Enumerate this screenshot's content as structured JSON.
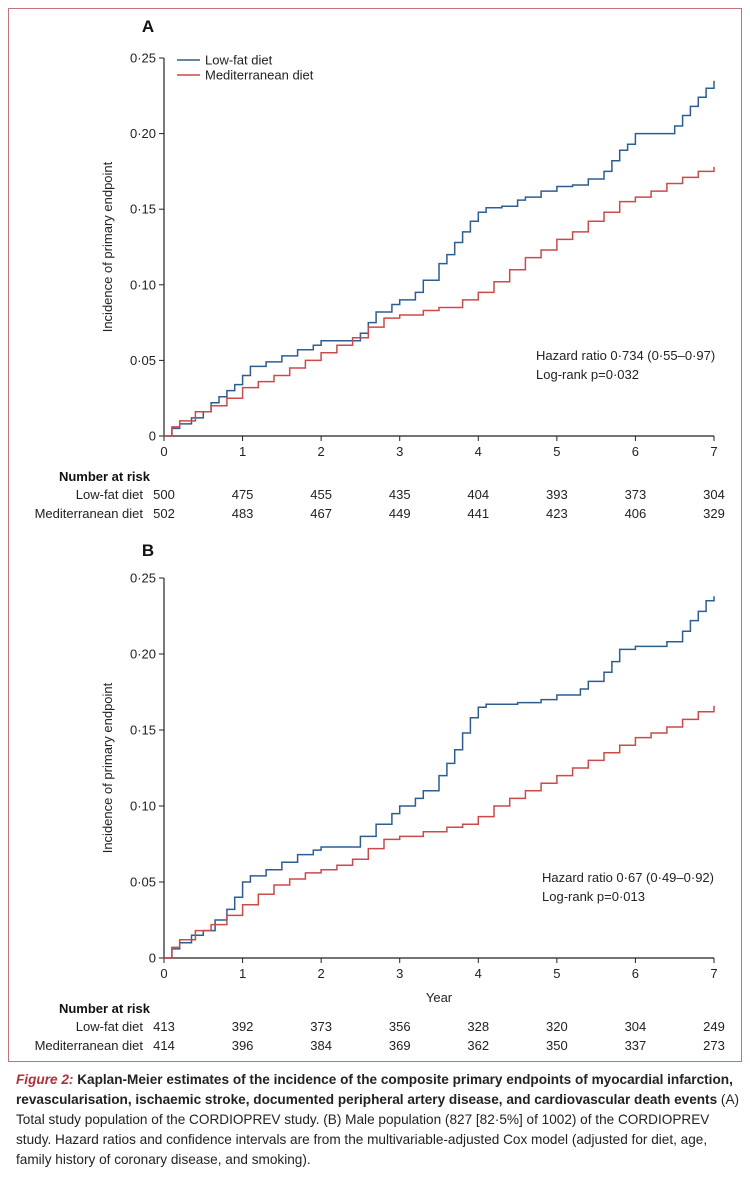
{
  "figure": {
    "caption_label": "Figure 2:",
    "caption_title": "Kaplan-Meier estimates of the incidence of the composite primary endpoints of myocardial infarction, revascularisation, ischaemic stroke, documented peripheral artery disease, and cardiovascular death events",
    "caption_body": "(A) Total study population of the CORDIOPREV study. (B) Male population (827 [82·5%] of 1002) of the CORDIOPREV study. Hazard ratios and confidence intervals are from the multivariable-adjusted Cox model (adjusted for diet, age, family history of coronary disease, and smoking)."
  },
  "colors": {
    "low_fat": "#2e5d8f",
    "mediterranean": "#cc4a4a",
    "frame": "#c7707a"
  },
  "chart_data": [
    {
      "type": "line",
      "panel": "A",
      "ylabel": "Incidence of primary endpoint",
      "xlabel": "",
      "xlim": [
        0,
        7
      ],
      "ylim": [
        0,
        0.25
      ],
      "x_ticks": [
        "0",
        "1",
        "2",
        "3",
        "4",
        "5",
        "6",
        "7"
      ],
      "y_ticks": [
        "0",
        "0·05",
        "0·10",
        "0·15",
        "0·20",
        "0·25"
      ],
      "legend": {
        "position": "top-left",
        "entries": [
          "Low-fat diet",
          "Mediterranean diet"
        ]
      },
      "annotation": [
        "Hazard ratio 0·734 (0·55–0·97)",
        "Log-rank p=0·032"
      ],
      "series": [
        {
          "name": "Low-fat diet",
          "x": [
            0,
            0.1,
            0.2,
            0.35,
            0.5,
            0.6,
            0.7,
            0.8,
            0.9,
            1.0,
            1.1,
            1.3,
            1.5,
            1.7,
            1.9,
            2.0,
            2.3,
            2.5,
            2.6,
            2.7,
            2.9,
            3.0,
            3.2,
            3.3,
            3.5,
            3.6,
            3.7,
            3.8,
            3.9,
            4.0,
            4.1,
            4.3,
            4.5,
            4.6,
            4.8,
            5.0,
            5.2,
            5.4,
            5.6,
            5.7,
            5.8,
            5.9,
            6.0,
            6.3,
            6.5,
            6.6,
            6.7,
            6.8,
            6.9,
            7.0
          ],
          "y": [
            0,
            0.005,
            0.008,
            0.012,
            0.016,
            0.022,
            0.026,
            0.03,
            0.034,
            0.04,
            0.046,
            0.049,
            0.053,
            0.057,
            0.06,
            0.063,
            0.063,
            0.068,
            0.075,
            0.082,
            0.087,
            0.09,
            0.095,
            0.103,
            0.114,
            0.12,
            0.128,
            0.135,
            0.142,
            0.148,
            0.151,
            0.152,
            0.156,
            0.158,
            0.162,
            0.165,
            0.166,
            0.17,
            0.175,
            0.182,
            0.189,
            0.193,
            0.2,
            0.2,
            0.205,
            0.212,
            0.218,
            0.224,
            0.23,
            0.235
          ]
        },
        {
          "name": "Mediterranean diet",
          "x": [
            0,
            0.1,
            0.2,
            0.4,
            0.6,
            0.8,
            1.0,
            1.2,
            1.4,
            1.6,
            1.8,
            2.0,
            2.2,
            2.4,
            2.6,
            2.8,
            3.0,
            3.3,
            3.5,
            3.8,
            4.0,
            4.2,
            4.4,
            4.6,
            4.8,
            5.0,
            5.2,
            5.4,
            5.6,
            5.8,
            6.0,
            6.2,
            6.4,
            6.6,
            6.8,
            7.0
          ],
          "y": [
            0,
            0.006,
            0.01,
            0.016,
            0.02,
            0.025,
            0.032,
            0.036,
            0.04,
            0.045,
            0.05,
            0.055,
            0.06,
            0.065,
            0.072,
            0.078,
            0.08,
            0.083,
            0.085,
            0.09,
            0.095,
            0.102,
            0.11,
            0.118,
            0.123,
            0.13,
            0.135,
            0.142,
            0.148,
            0.155,
            0.158,
            0.162,
            0.167,
            0.171,
            0.175,
            0.178
          ]
        }
      ],
      "risk_table": {
        "heading": "Number at risk",
        "rows": [
          {
            "label": "Low-fat diet",
            "values": [
              "500",
              "475",
              "455",
              "435",
              "404",
              "393",
              "373",
              "304"
            ]
          },
          {
            "label": "Mediterranean diet",
            "values": [
              "502",
              "483",
              "467",
              "449",
              "441",
              "423",
              "406",
              "329"
            ]
          }
        ]
      }
    },
    {
      "type": "line",
      "panel": "B",
      "ylabel": "Incidence of primary endpoint",
      "xlabel": "Year",
      "xlim": [
        0,
        7
      ],
      "ylim": [
        0,
        0.25
      ],
      "x_ticks": [
        "0",
        "1",
        "2",
        "3",
        "4",
        "5",
        "6",
        "7"
      ],
      "y_ticks": [
        "0",
        "0·05",
        "0·10",
        "0·15",
        "0·20",
        "0·25"
      ],
      "annotation": [
        "Hazard ratio 0·67 (0·49–0·92)",
        "Log-rank p=0·013"
      ],
      "series": [
        {
          "name": "Low-fat diet",
          "x": [
            0,
            0.1,
            0.2,
            0.35,
            0.5,
            0.65,
            0.8,
            0.9,
            1.0,
            1.1,
            1.3,
            1.5,
            1.7,
            1.9,
            2.0,
            2.3,
            2.5,
            2.7,
            2.9,
            3.0,
            3.2,
            3.3,
            3.5,
            3.6,
            3.7,
            3.8,
            3.9,
            4.0,
            4.1,
            4.3,
            4.5,
            4.8,
            5.0,
            5.3,
            5.4,
            5.6,
            5.7,
            5.8,
            6.0,
            6.4,
            6.6,
            6.7,
            6.8,
            6.9,
            7.0
          ],
          "y": [
            0,
            0.006,
            0.01,
            0.015,
            0.018,
            0.025,
            0.032,
            0.04,
            0.05,
            0.054,
            0.058,
            0.063,
            0.068,
            0.071,
            0.073,
            0.073,
            0.08,
            0.088,
            0.095,
            0.1,
            0.105,
            0.11,
            0.12,
            0.128,
            0.137,
            0.148,
            0.158,
            0.165,
            0.167,
            0.167,
            0.168,
            0.17,
            0.173,
            0.177,
            0.182,
            0.188,
            0.195,
            0.203,
            0.205,
            0.208,
            0.215,
            0.222,
            0.228,
            0.235,
            0.238
          ]
        },
        {
          "name": "Mediterranean diet",
          "x": [
            0,
            0.1,
            0.2,
            0.4,
            0.6,
            0.8,
            1.0,
            1.2,
            1.4,
            1.6,
            1.8,
            2.0,
            2.2,
            2.4,
            2.6,
            2.8,
            3.0,
            3.3,
            3.6,
            3.8,
            4.0,
            4.2,
            4.4,
            4.6,
            4.8,
            5.0,
            5.2,
            5.4,
            5.6,
            5.8,
            6.0,
            6.2,
            6.4,
            6.6,
            6.8,
            7.0
          ],
          "y": [
            0,
            0.007,
            0.012,
            0.018,
            0.022,
            0.028,
            0.035,
            0.042,
            0.048,
            0.052,
            0.056,
            0.058,
            0.061,
            0.065,
            0.072,
            0.078,
            0.08,
            0.083,
            0.086,
            0.088,
            0.093,
            0.1,
            0.105,
            0.11,
            0.115,
            0.12,
            0.125,
            0.13,
            0.135,
            0.14,
            0.145,
            0.148,
            0.152,
            0.157,
            0.162,
            0.166
          ]
        }
      ],
      "risk_table": {
        "heading": "Number at risk",
        "rows": [
          {
            "label": "Low-fat diet",
            "values": [
              "413",
              "392",
              "373",
              "356",
              "328",
              "320",
              "304",
              "249"
            ]
          },
          {
            "label": "Mediterranean diet",
            "values": [
              "414",
              "396",
              "384",
              "369",
              "362",
              "350",
              "337",
              "273"
            ]
          }
        ]
      }
    }
  ]
}
